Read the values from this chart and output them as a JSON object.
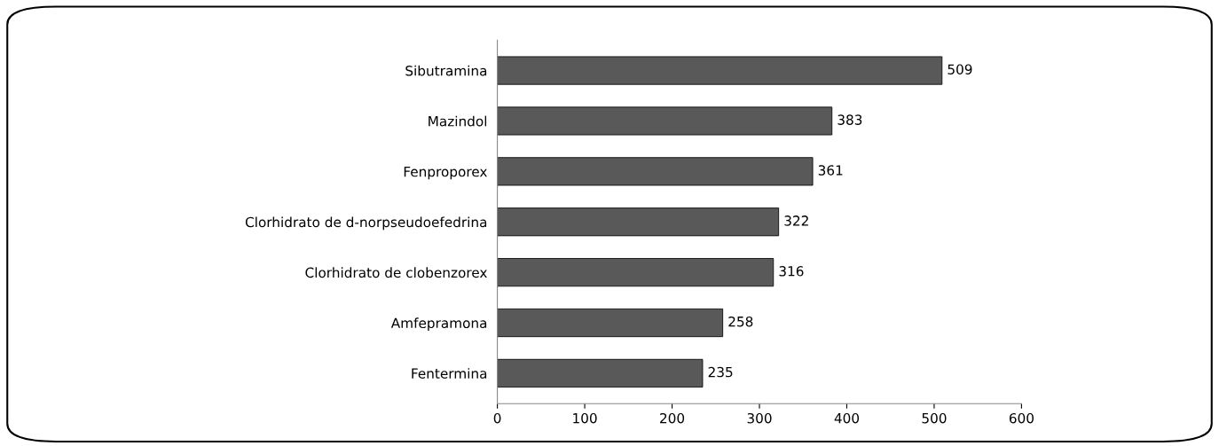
{
  "chart_data": {
    "type": "bar",
    "orientation": "horizontal",
    "categories": [
      "Sibutramina",
      "Mazindol",
      "Fenproporex",
      "Clorhidrato de d-norpseudoefedrina",
      "Clorhidrato de clobenzorex",
      "Amfepramona",
      "Fentermina"
    ],
    "values": [
      509,
      383,
      361,
      322,
      316,
      258,
      235
    ],
    "color": "#595959",
    "xlim": [
      0,
      600
    ],
    "xticks": [
      0,
      100,
      200,
      300,
      400,
      500,
      600
    ],
    "data_labels": true,
    "grid": false
  }
}
